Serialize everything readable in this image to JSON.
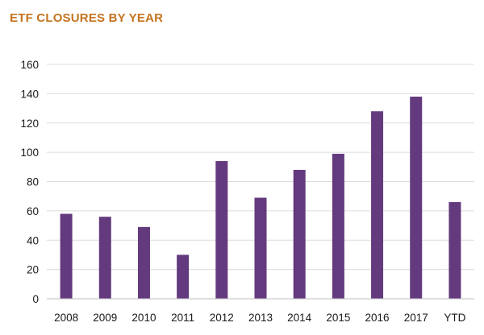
{
  "chart_data": {
    "type": "bar",
    "title": "ETF CLOSURES BY YEAR",
    "categories": [
      "2008",
      "2009",
      "2010",
      "2011",
      "2012",
      "2013",
      "2014",
      "2015",
      "2016",
      "2017",
      "YTD"
    ],
    "values": [
      58,
      56,
      49,
      30,
      94,
      69,
      88,
      99,
      128,
      138,
      66
    ],
    "xlabel": "",
    "ylabel": "",
    "ylim": [
      0,
      160
    ],
    "yticks": [
      0,
      20,
      40,
      60,
      80,
      100,
      120,
      140,
      160
    ],
    "grid": true,
    "legend": "none",
    "colors": {
      "bar": "#643a7e",
      "title": "#c5731f",
      "grid": "#dcdcdc",
      "axis": "#bdbdbd"
    }
  }
}
